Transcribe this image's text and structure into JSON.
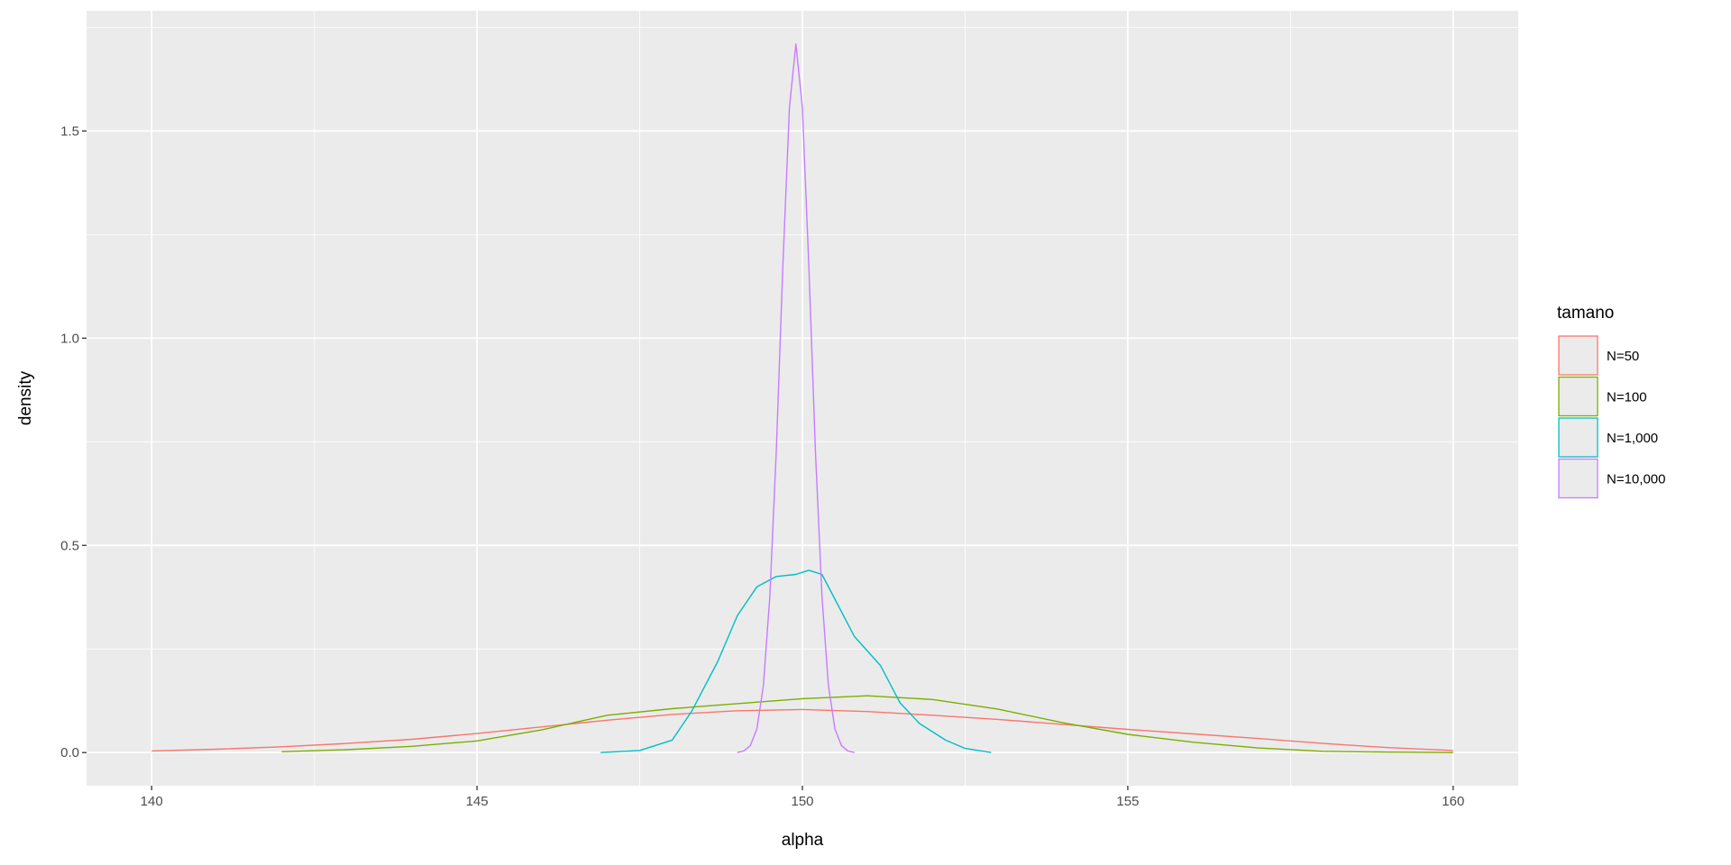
{
  "chart_data": {
    "type": "line",
    "xlabel": "alpha",
    "ylabel": "density",
    "xlim": [
      139,
      161
    ],
    "ylim": [
      -0.08,
      1.79
    ],
    "x_ticks": [
      "140",
      "145",
      "150",
      "155",
      "160"
    ],
    "x_tick_values": [
      140,
      145,
      150,
      155,
      160
    ],
    "y_ticks": [
      "0.0",
      "0.5",
      "1.0",
      "1.5"
    ],
    "y_tick_values": [
      0,
      0.5,
      1.0,
      1.5
    ],
    "grid": true,
    "panel_background": "#EBEBEB",
    "legend": {
      "title": "tamano",
      "placement": "right"
    },
    "series": [
      {
        "name": "N=50",
        "color": "#F8766D",
        "x": [
          140,
          141,
          142,
          143,
          144,
          145,
          146,
          147,
          148,
          149,
          150,
          151,
          152,
          153,
          154,
          155,
          156,
          157,
          158,
          159,
          160
        ],
        "y": [
          0.004,
          0.008,
          0.014,
          0.022,
          0.032,
          0.046,
          0.062,
          0.078,
          0.092,
          0.101,
          0.104,
          0.099,
          0.09,
          0.08,
          0.068,
          0.056,
          0.045,
          0.034,
          0.022,
          0.012,
          0.005
        ]
      },
      {
        "name": "N=100",
        "color": "#7CAE00",
        "x": [
          142,
          143,
          144,
          145,
          146,
          147,
          148,
          149,
          150,
          151,
          152,
          153,
          154,
          155,
          156,
          157,
          158,
          159,
          160
        ],
        "y": [
          0.002,
          0.007,
          0.015,
          0.028,
          0.055,
          0.09,
          0.106,
          0.118,
          0.13,
          0.137,
          0.128,
          0.105,
          0.072,
          0.044,
          0.025,
          0.011,
          0.003,
          0.001,
          0
        ]
      },
      {
        "name": "N=1,000",
        "color": "#00BFC4",
        "x": [
          146.9,
          147.5,
          148,
          148.3,
          148.7,
          149,
          149.3,
          149.6,
          149.9,
          150.1,
          150.3,
          150.5,
          150.8,
          151.2,
          151.5,
          151.8,
          152.2,
          152.5,
          152.9
        ],
        "y": [
          0,
          0.005,
          0.03,
          0.1,
          0.22,
          0.33,
          0.4,
          0.425,
          0.43,
          0.44,
          0.43,
          0.37,
          0.28,
          0.21,
          0.12,
          0.07,
          0.03,
          0.01,
          0
        ]
      },
      {
        "name": "N=10,000",
        "color": "#C77CFF",
        "x": [
          149,
          149.1,
          149.2,
          149.3,
          149.4,
          149.5,
          149.6,
          149.7,
          149.8,
          149.9,
          150,
          150.1,
          150.2,
          150.3,
          150.4,
          150.5,
          150.6,
          150.7,
          150.8
        ],
        "y": [
          0,
          0.004,
          0.017,
          0.057,
          0.161,
          0.377,
          0.73,
          1.172,
          1.556,
          1.71,
          1.556,
          1.172,
          0.73,
          0.377,
          0.161,
          0.057,
          0.017,
          0.004,
          0
        ]
      }
    ]
  }
}
